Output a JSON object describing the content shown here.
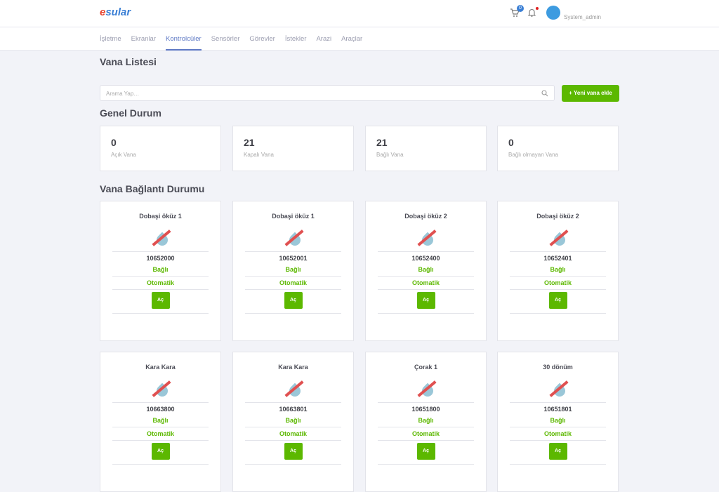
{
  "header": {
    "logo": "esular",
    "cart_count": "0",
    "user": "System_admin"
  },
  "nav": [
    "İşletme",
    "Ekranlar",
    "Kontrolcüler",
    "Sensörler",
    "Görevler",
    "İstekler",
    "Arazi",
    "Araçlar"
  ],
  "page_title": "Vana Listesi",
  "search": {
    "placeholder": "Arama Yap…"
  },
  "add_button": "Yeni vana ekle",
  "general_title": "Genel Durum",
  "stats": [
    {
      "value": "0",
      "label": "Açık Vana"
    },
    {
      "value": "21",
      "label": "Kapalı Vana"
    },
    {
      "value": "21",
      "label": "Bağlı Vana"
    },
    {
      "value": "0",
      "label": "Bağlı olmayan Vana"
    }
  ],
  "connection_title": "Vana Bağlantı Durumu",
  "valves": [
    {
      "name": "Dobaşi öküz 1",
      "id": "10652000",
      "status": "Bağlı",
      "mode": "Otomatik",
      "action": "Aç"
    },
    {
      "name": "Dobaşi öküz 1",
      "id": "10652001",
      "status": "Bağlı",
      "mode": "Otomatik",
      "action": "Aç"
    },
    {
      "name": "Dobaşi öküz 2",
      "id": "10652400",
      "status": "Bağlı",
      "mode": "Otomatik",
      "action": "Aç"
    },
    {
      "name": "Dobaşi öküz 2",
      "id": "10652401",
      "status": "Bağlı",
      "mode": "Otomatik",
      "action": "Aç"
    },
    {
      "name": "Kara Kara",
      "id": "10663800",
      "status": "Bağlı",
      "mode": "Otomatik",
      "action": "Aç"
    },
    {
      "name": "Kara Kara",
      "id": "10663801",
      "status": "Bağlı",
      "mode": "Otomatik",
      "action": "Aç"
    },
    {
      "name": "Çorak 1",
      "id": "10651800",
      "status": "Bağlı",
      "mode": "Otomatik",
      "action": "Aç"
    },
    {
      "name": "30 dönüm",
      "id": "10651801",
      "status": "Bağlı",
      "mode": "Otomatik",
      "action": "Aç"
    }
  ],
  "colors": {
    "accent": "#5cb800",
    "nav_active": "#5d78c4"
  }
}
